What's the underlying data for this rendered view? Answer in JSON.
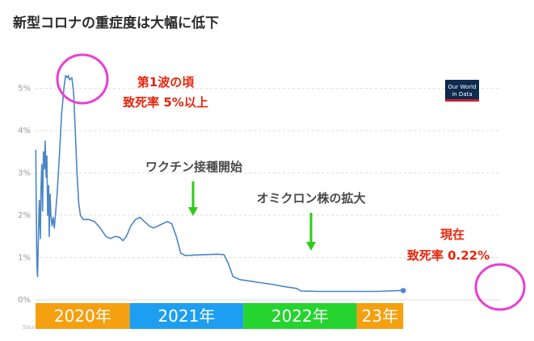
{
  "page": {
    "title": "新型コロナの重症度は大幅に低下",
    "source_label": "Sour"
  },
  "logo": {
    "line1": "Our World",
    "line2": "in Data"
  },
  "colors": {
    "line": "#4a86c8",
    "grid": "#dddddd",
    "annotation_red": "#e8250c",
    "annotation_dark": "#4a4a4a",
    "arrow": "#2ecc1a",
    "circle": "#e83fd3",
    "logo_bg": "#0d2a4f",
    "logo_bar": "#c8202e"
  },
  "chart_data": {
    "type": "line",
    "title": "",
    "xlabel": "",
    "ylabel": "",
    "ylim": [
      0,
      5.6
    ],
    "xlim": [
      0,
      4.1
    ],
    "yticks": [
      0,
      1,
      2,
      3,
      4,
      5
    ],
    "ytick_labels": [
      "0%",
      "1%",
      "2%",
      "3%",
      "4%",
      "5%"
    ],
    "grid": true,
    "x_units": "years since start of 2020",
    "series": [
      {
        "points": [
          [
            0.002,
            3.55
          ],
          [
            0.006,
            2.4
          ],
          [
            0.01,
            1.2
          ],
          [
            0.014,
            0.7
          ],
          [
            0.018,
            0.55
          ],
          [
            0.022,
            1.1
          ],
          [
            0.028,
            1.8
          ],
          [
            0.033,
            2.35
          ],
          [
            0.038,
            1.9
          ],
          [
            0.043,
            1.45
          ],
          [
            0.048,
            2.6
          ],
          [
            0.055,
            3.2
          ],
          [
            0.062,
            2.1
          ],
          [
            0.07,
            3.5
          ],
          [
            0.078,
            3.1
          ],
          [
            0.085,
            3.75
          ],
          [
            0.093,
            2.9
          ],
          [
            0.1,
            3.4
          ],
          [
            0.107,
            2.0
          ],
          [
            0.115,
            2.7
          ],
          [
            0.12,
            1.5
          ],
          [
            0.128,
            2.5
          ],
          [
            0.135,
            2.0
          ],
          [
            0.145,
            1.75
          ],
          [
            0.155,
            1.95
          ],
          [
            0.165,
            1.7
          ],
          [
            0.175,
            2.0
          ],
          [
            0.19,
            2.5
          ],
          [
            0.21,
            3.4
          ],
          [
            0.23,
            4.4
          ],
          [
            0.25,
            5.0
          ],
          [
            0.265,
            5.3
          ],
          [
            0.28,
            5.25
          ],
          [
            0.29,
            5.3
          ],
          [
            0.3,
            5.2
          ],
          [
            0.32,
            5.25
          ],
          [
            0.335,
            4.9
          ],
          [
            0.35,
            4.0
          ],
          [
            0.365,
            3.0
          ],
          [
            0.38,
            2.3
          ],
          [
            0.395,
            2.0
          ],
          [
            0.42,
            1.9
          ],
          [
            0.47,
            1.9
          ],
          [
            0.52,
            1.85
          ],
          [
            0.57,
            1.7
          ],
          [
            0.62,
            1.5
          ],
          [
            0.66,
            1.45
          ],
          [
            0.7,
            1.5
          ],
          [
            0.74,
            1.48
          ],
          [
            0.77,
            1.4
          ],
          [
            0.8,
            1.5
          ],
          [
            0.84,
            1.75
          ],
          [
            0.88,
            1.9
          ],
          [
            0.92,
            1.95
          ],
          [
            0.96,
            1.85
          ],
          [
            1.0,
            1.75
          ],
          [
            1.04,
            1.7
          ],
          [
            1.08,
            1.75
          ],
          [
            1.12,
            1.8
          ],
          [
            1.16,
            1.85
          ],
          [
            1.2,
            1.8
          ],
          [
            1.24,
            1.5
          ],
          [
            1.28,
            1.1
          ],
          [
            1.32,
            1.05
          ],
          [
            1.4,
            1.06
          ],
          [
            1.5,
            1.07
          ],
          [
            1.6,
            1.08
          ],
          [
            1.66,
            1.07
          ],
          [
            1.7,
            0.85
          ],
          [
            1.74,
            0.55
          ],
          [
            1.8,
            0.48
          ],
          [
            1.9,
            0.44
          ],
          [
            2.0,
            0.4
          ],
          [
            2.1,
            0.36
          ],
          [
            2.2,
            0.31
          ],
          [
            2.3,
            0.27
          ],
          [
            2.34,
            0.21
          ],
          [
            2.5,
            0.2
          ],
          [
            2.7,
            0.2
          ],
          [
            2.8,
            0.2
          ],
          [
            3.0,
            0.2
          ],
          [
            3.1,
            0.21
          ],
          [
            3.2,
            0.22
          ],
          [
            3.24,
            0.22
          ]
        ],
        "end_point": [
          3.24,
          0.22
        ]
      }
    ],
    "year_bands": [
      {
        "label": "2020年",
        "start": 0,
        "end": 0.83,
        "color": "#f5a011"
      },
      {
        "label": "2021年",
        "start": 0.83,
        "end": 1.83,
        "color": "#1e9ef0"
      },
      {
        "label": "2022年",
        "start": 1.83,
        "end": 2.83,
        "color": "#25d42f"
      },
      {
        "label": "23年",
        "start": 2.83,
        "end": 3.24,
        "color": "#f5a011"
      }
    ],
    "annotations": {
      "first_wave": {
        "line1": "第1波の頃",
        "line2": "致死率 5%以上"
      },
      "vaccination": {
        "label": "ワクチン接種開始"
      },
      "omicron": {
        "label": "オミクロン株の拡大"
      },
      "current": {
        "line1": "現在",
        "line2": "致死率 0.22%"
      }
    }
  }
}
